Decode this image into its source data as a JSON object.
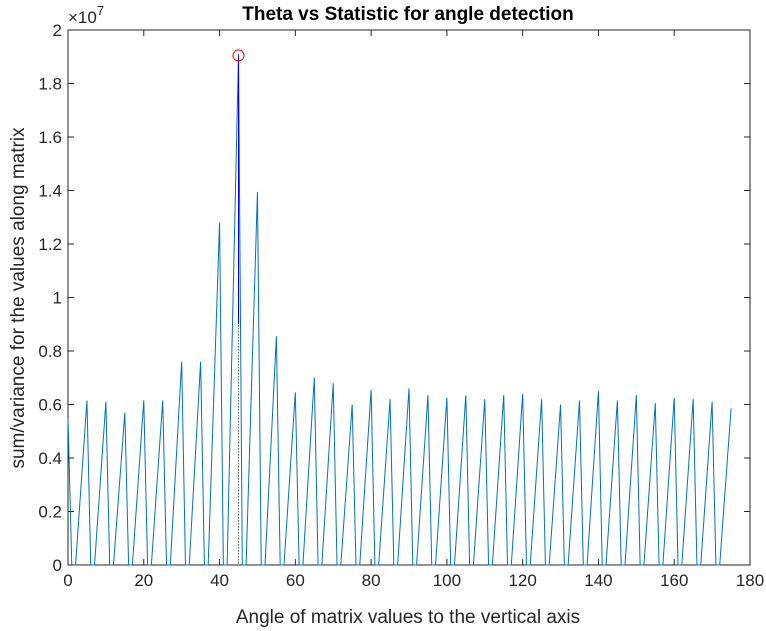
{
  "chart_data": {
    "type": "line",
    "title": "Theta vs Statistic for angle detection",
    "xlabel": "Angle of matrix values to the vertical axis",
    "ylabel": "sum/variance for the values along matrix",
    "exponent_label": "×10",
    "exponent_power": "7",
    "xlim": [
      0,
      180
    ],
    "ylim": [
      0,
      2
    ],
    "y_scale_factor": 10000000,
    "xticks": [
      "0",
      "20",
      "40",
      "60",
      "80",
      "100",
      "120",
      "140",
      "160",
      "180"
    ],
    "yticks": [
      "0",
      "0.2",
      "0.4",
      "0.6",
      "0.8",
      "1",
      "1.2",
      "1.4",
      "1.6",
      "1.8",
      "2"
    ],
    "grid": false,
    "series": [
      {
        "color": "#0072BD",
        "x": [
          0,
          5,
          10,
          15,
          20,
          25,
          30,
          35,
          40,
          45,
          50,
          55,
          60,
          65,
          70,
          75,
          80,
          85,
          90,
          95,
          100,
          105,
          110,
          115,
          120,
          125,
          130,
          135,
          140,
          145,
          150,
          155,
          160,
          165,
          170,
          175
        ],
        "y": [
          0.55,
          0.615,
          0.61,
          0.57,
          0.615,
          0.615,
          0.76,
          0.76,
          1.28,
          1.91,
          1.395,
          0.855,
          0.645,
          0.7,
          0.68,
          0.6,
          0.655,
          0.62,
          0.66,
          0.635,
          0.625,
          0.635,
          0.62,
          0.635,
          0.64,
          0.62,
          0.6,
          0.615,
          0.65,
          0.615,
          0.635,
          0.605,
          0.625,
          0.62,
          0.61,
          0.585
        ],
        "baseline": 0
      }
    ],
    "peak_marker": {
      "x": 45,
      "y": 1.905,
      "color": "#FF0000",
      "line_color": "#0000FF"
    }
  }
}
